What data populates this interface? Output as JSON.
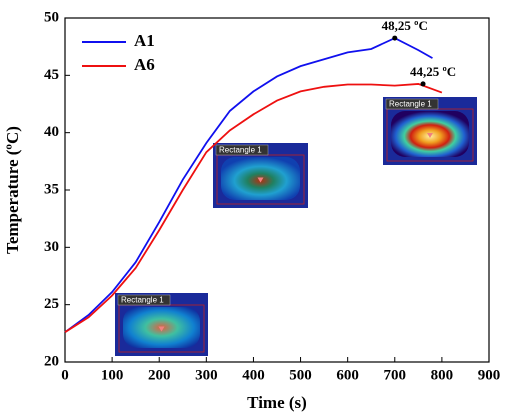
{
  "chart_data": {
    "type": "line",
    "x_label": "Time (s)",
    "y_label": "Temperature (ºC)",
    "xlim": [
      0,
      900
    ],
    "xticks": [
      0,
      100,
      200,
      300,
      400,
      500,
      600,
      700,
      800,
      900
    ],
    "ylim": [
      20,
      50
    ],
    "yticks": [
      20,
      25,
      30,
      35,
      40,
      45,
      50
    ],
    "legend": "upper left",
    "series": [
      {
        "name": "A1",
        "color": "#1010ee",
        "x": [
          0,
          50,
          100,
          150,
          200,
          250,
          300,
          350,
          400,
          450,
          500,
          550,
          600,
          650,
          700,
          750,
          780
        ],
        "values": [
          22.6,
          24.1,
          26.1,
          28.7,
          32.2,
          35.9,
          39.1,
          41.9,
          43.6,
          44.9,
          45.8,
          46.4,
          47,
          47.3,
          48.25,
          47.2,
          46.5
        ]
      },
      {
        "name": "A6",
        "color": "#ee1010",
        "x": [
          0,
          50,
          100,
          150,
          200,
          250,
          300,
          350,
          400,
          450,
          500,
          550,
          600,
          650,
          700,
          750,
          800
        ],
        "values": [
          22.6,
          23.9,
          25.8,
          28.2,
          31.5,
          35,
          38.3,
          40.2,
          41.6,
          42.8,
          43.6,
          44,
          44.2,
          44.2,
          44.1,
          44.25,
          43.5
        ]
      }
    ],
    "annotations": [
      {
        "text": "48,25 ºC",
        "x": 700,
        "y": 48.25
      },
      {
        "text": "44,25 ºC",
        "x": 760,
        "y": 44.25
      }
    ],
    "inset_labels": [
      "Rectangle 1",
      "Rectangle 1",
      "Rectangle 1"
    ]
  }
}
